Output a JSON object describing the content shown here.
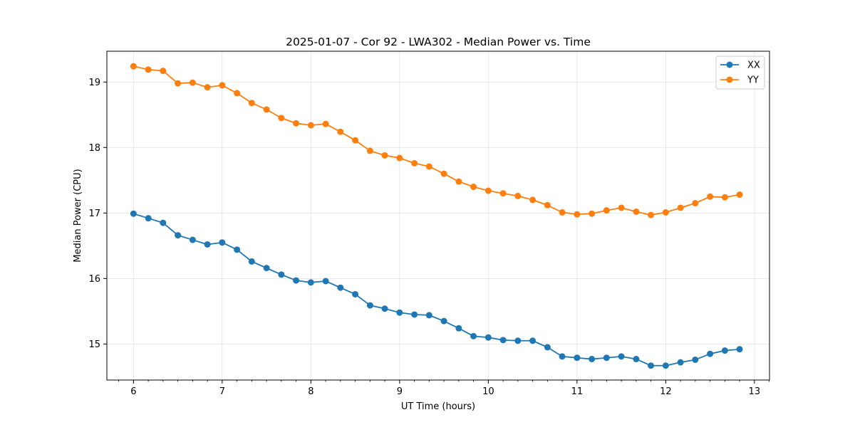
{
  "chart_data": {
    "type": "line",
    "title": "2025-01-07 - Cor 92 - LWA302 - Median Power vs. Time",
    "xlabel": "UT Time (hours)",
    "ylabel": "Median Power (CPU)",
    "xlim": [
      5.7,
      13.17
    ],
    "ylim": [
      14.45,
      19.47
    ],
    "xticks": [
      6,
      7,
      8,
      9,
      10,
      11,
      12,
      13
    ],
    "yticks": [
      15,
      16,
      17,
      18,
      19
    ],
    "grid": true,
    "legend_position": "top-right",
    "x": [
      6.0,
      6.167,
      6.333,
      6.5,
      6.667,
      6.833,
      7.0,
      7.167,
      7.333,
      7.5,
      7.667,
      7.833,
      8.0,
      8.167,
      8.333,
      8.5,
      8.667,
      8.833,
      9.0,
      9.167,
      9.333,
      9.5,
      9.667,
      9.833,
      10.0,
      10.167,
      10.333,
      10.5,
      10.667,
      10.833,
      11.0,
      11.167,
      11.333,
      11.5,
      11.667,
      11.833,
      12.0,
      12.167,
      12.333,
      12.5,
      12.667,
      12.833
    ],
    "series": [
      {
        "name": "XX",
        "color": "#1f77b4",
        "values": [
          16.99,
          16.92,
          16.85,
          16.66,
          16.59,
          16.52,
          16.55,
          16.44,
          16.26,
          16.16,
          16.06,
          15.97,
          15.94,
          15.96,
          15.86,
          15.76,
          15.59,
          15.54,
          15.48,
          15.45,
          15.44,
          15.35,
          15.24,
          15.12,
          15.1,
          15.06,
          15.05,
          15.05,
          14.95,
          14.81,
          14.79,
          14.77,
          14.79,
          14.81,
          14.77,
          14.67,
          14.67,
          14.72,
          14.76,
          14.85,
          14.9,
          14.92
        ]
      },
      {
        "name": "YY",
        "color": "#ff7f0e",
        "values": [
          19.24,
          19.19,
          19.17,
          18.98,
          18.99,
          18.92,
          18.95,
          18.83,
          18.68,
          18.58,
          18.45,
          18.37,
          18.34,
          18.36,
          18.24,
          18.11,
          17.95,
          17.88,
          17.84,
          17.76,
          17.71,
          17.6,
          17.48,
          17.4,
          17.34,
          17.3,
          17.26,
          17.2,
          17.12,
          17.01,
          16.98,
          16.99,
          17.04,
          17.08,
          17.02,
          16.97,
          17.01,
          17.08,
          17.15,
          17.25,
          17.24,
          17.28
        ]
      }
    ]
  }
}
